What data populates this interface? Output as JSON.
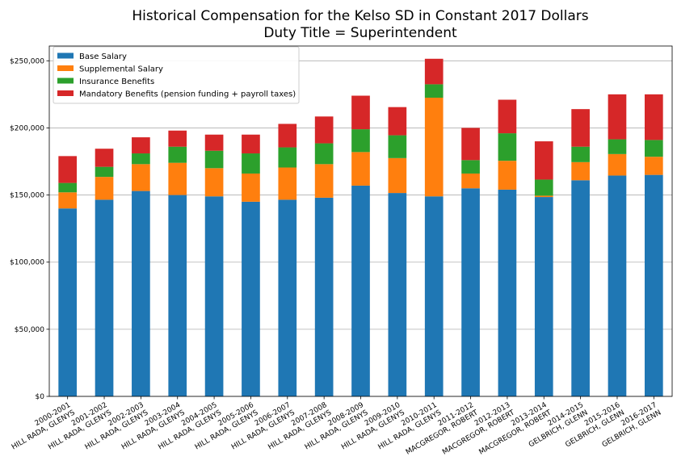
{
  "chart_data": {
    "type": "bar",
    "stacked": true,
    "title": [
      "Historical Compensation for the Kelso SD in Constant 2017 Dollars",
      "Duty Title = Superintendent"
    ],
    "xlabel": "",
    "ylabel": "",
    "ylim": [
      0,
      261000
    ],
    "yticks": [
      0,
      50000,
      100000,
      150000,
      200000,
      250000
    ],
    "ytick_labels": [
      "$0",
      "$50,000",
      "$100,000",
      "$150,000",
      "$200,000",
      "$250,000"
    ],
    "grid": "y",
    "legend_position": "top-left",
    "categories": [
      [
        "2000-2001",
        "HILL RADA, GLENYS"
      ],
      [
        "2001-2002",
        "HILL RADA, GLENYS"
      ],
      [
        "2002-2003",
        "HILL RADA, GLENYS"
      ],
      [
        "2003-2004",
        "HILL RADA, GLENYS"
      ],
      [
        "2004-2005",
        "HILL RADA, GLENYS"
      ],
      [
        "2005-2006",
        "HILL RADA, GLENYS"
      ],
      [
        "2006-2007",
        "HILL RADA, GLENYS"
      ],
      [
        "2007-2008",
        "HILL RADA, GLENYS"
      ],
      [
        "2008-2009",
        "HILL RADA, GLENYS"
      ],
      [
        "2009-2010",
        "HILL RADA, GLENYS"
      ],
      [
        "2010-2011",
        "HILL RADA, GLENYS"
      ],
      [
        "2011-2012",
        "MACGREGOR, ROBERT"
      ],
      [
        "2012-2013",
        "MACGREGOR, ROBERT"
      ],
      [
        "2013-2014",
        "MACGREGOR, ROBERT"
      ],
      [
        "2014-2015",
        "GELBRICH, GLENN"
      ],
      [
        "2015-2016",
        "GELBRICH, GLENN"
      ],
      [
        "2016-2017",
        "GELBRICH, GLENN"
      ]
    ],
    "series": [
      {
        "name": "Base Salary",
        "color": "#1f77b4",
        "values": [
          140000,
          146500,
          153000,
          150000,
          149000,
          145000,
          146500,
          148000,
          157000,
          151500,
          149000,
          155000,
          154000,
          148500,
          161000,
          164500,
          165000
        ]
      },
      {
        "name": "Supplemental Salary",
        "color": "#ff7f0e",
        "values": [
          12000,
          17000,
          20000,
          24000,
          21000,
          21000,
          24000,
          25000,
          25000,
          26000,
          73500,
          11000,
          21500,
          1000,
          13500,
          16000,
          13500
        ]
      },
      {
        "name": "Insurance Benefits",
        "color": "#2ca02c",
        "values": [
          7000,
          7500,
          8000,
          12000,
          13000,
          15000,
          15000,
          15500,
          17000,
          17000,
          10000,
          10000,
          20500,
          12000,
          11500,
          11000,
          12500
        ]
      },
      {
        "name": "Mandatory Benefits (pension funding + payroll taxes)",
        "color": "#d62728",
        "values": [
          20000,
          13500,
          12000,
          12000,
          12000,
          14000,
          17500,
          20000,
          25000,
          21000,
          19000,
          24000,
          25000,
          28500,
          28000,
          33500,
          34000
        ]
      }
    ]
  }
}
